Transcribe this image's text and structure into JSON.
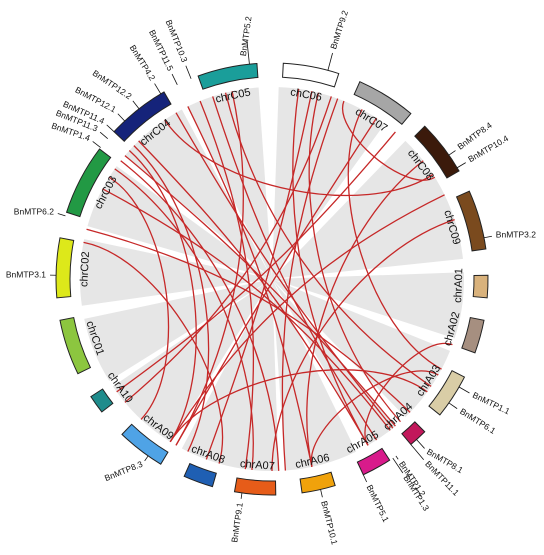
{
  "colors": {
    "background_fan": "#e6e6e6",
    "link": "#c62828"
  },
  "chromosomes": [
    {
      "id": "chrC05",
      "label": "chrC05",
      "color": "#1a9e9a"
    },
    {
      "id": "chC06",
      "label": "chC06",
      "color": "#ffffff"
    },
    {
      "id": "chrC07",
      "label": "chrC07",
      "color": "#a6a6a6"
    },
    {
      "id": "chrC08",
      "label": "chrC08",
      "color": "#3b1a0b"
    },
    {
      "id": "chrC09",
      "label": "chrC09",
      "color": "#7a4a1e"
    },
    {
      "id": "chrA01",
      "label": "chrA01",
      "color": "#d9b27c"
    },
    {
      "id": "chrA02",
      "label": "chrA02",
      "color": "#a68f80"
    },
    {
      "id": "chrA03",
      "label": "chrA03",
      "color": "#d9cda6"
    },
    {
      "id": "chrA04",
      "label": "chrA04",
      "color": "#c2185b"
    },
    {
      "id": "chrA05",
      "label": "chrA05",
      "color": "#d81b8b"
    },
    {
      "id": "chrA06",
      "label": "chrA06",
      "color": "#f0a20b"
    },
    {
      "id": "chrA07",
      "label": "chrA07",
      "color": "#e65c19"
    },
    {
      "id": "chrA08",
      "label": "chrA08",
      "color": "#1f5fb3"
    },
    {
      "id": "chrA09",
      "label": "chrA09",
      "color": "#4fa3e6"
    },
    {
      "id": "chrA10",
      "label": "chrA10",
      "color": "#1f8c8c"
    },
    {
      "id": "chrC01",
      "label": "chrC01",
      "color": "#8cc63f"
    },
    {
      "id": "chrC02",
      "label": "chrC02",
      "color": "#dde81a"
    },
    {
      "id": "chrC03",
      "label": "chrC03",
      "color": "#229944"
    },
    {
      "id": "chrC04",
      "label": "chrC04",
      "color": "#15237a"
    }
  ],
  "genes": [
    {
      "id": "BnMTP5.2",
      "label": "BnMTP5.2"
    },
    {
      "id": "BnMTP9.2",
      "label": "BnMTP9.2"
    },
    {
      "id": "BnMTP10.3",
      "label": "BnMTP10.3"
    },
    {
      "id": "BnMTP11.5",
      "label": "BnMTP11.5"
    },
    {
      "id": "BnMTP4.2",
      "label": "BnMTP4.2"
    },
    {
      "id": "BnMTP12.2",
      "label": "BnMTP12.2"
    },
    {
      "id": "BnMTP12.1",
      "label": "BnMTP12.1"
    },
    {
      "id": "BnMTP11.4",
      "label": "BnMTP11.4"
    },
    {
      "id": "BnMTP11.3",
      "label": "BnMTP11.3"
    },
    {
      "id": "BnMTP1.4",
      "label": "BnMTP1.4"
    },
    {
      "id": "BnMTP8.4",
      "label": "BnMTP8.4"
    },
    {
      "id": "BnMTP10.4",
      "label": "BnMTP10.4"
    },
    {
      "id": "BnMTP6.2",
      "label": "BnMTP6.2"
    },
    {
      "id": "BnMTP3.2",
      "label": "BnMTP3.2"
    },
    {
      "id": "BnMTP3.1",
      "label": "BnMTP3.1"
    },
    {
      "id": "BnMTP1.1",
      "label": "BnMTP1.1"
    },
    {
      "id": "BnMTP6.1",
      "label": "BnMTP6.1"
    },
    {
      "id": "BnMTP8.1",
      "label": "BnMTP8.1"
    },
    {
      "id": "BnMTP11.1",
      "label": "BnMTP11.1"
    },
    {
      "id": "BnMTP1.2",
      "label": "BnMTP1.2"
    },
    {
      "id": "BnMTP1.3",
      "label": "BnMTP1.3"
    },
    {
      "id": "BnMTP5.1",
      "label": "BnMTP5.1"
    },
    {
      "id": "BnMTP10.1",
      "label": "BnMTP10.1"
    },
    {
      "id": "BnMTP9.1",
      "label": "BnMTP9.1"
    },
    {
      "id": "BnMTP8.3",
      "label": "BnMTP8.3"
    }
  ]
}
